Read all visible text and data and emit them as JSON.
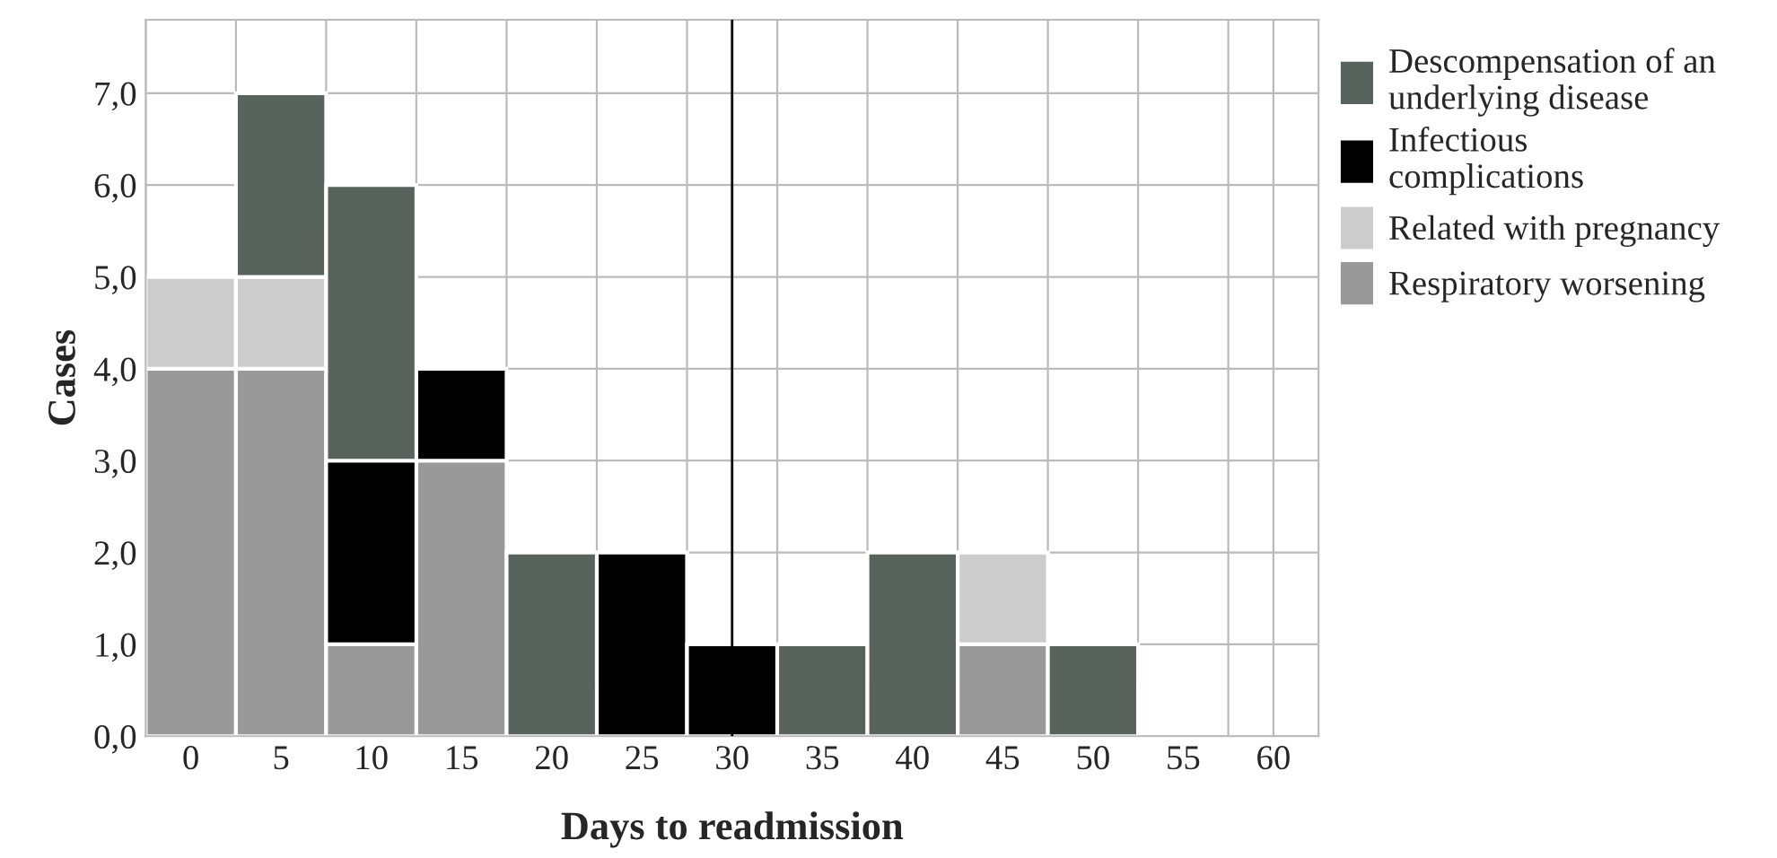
{
  "chart_data": {
    "type": "bar",
    "stacked": true,
    "xlabel": "Days to readmission",
    "ylabel": "Cases",
    "categories": [
      "0",
      "5",
      "10",
      "15",
      "20",
      "25",
      "30",
      "35",
      "40",
      "45",
      "50",
      "55",
      "60"
    ],
    "series": [
      {
        "name": "Respiratory worsening",
        "color": "#999999",
        "values": [
          4,
          4,
          1,
          3,
          0,
          0,
          0,
          0,
          0,
          1,
          0,
          0,
          0
        ]
      },
      {
        "name": "Related with pregnancy",
        "color": "#cccccc",
        "values": [
          1,
          1,
          0,
          0,
          0,
          0,
          0,
          0,
          0,
          1,
          0,
          0,
          0
        ]
      },
      {
        "name": "Infectious complications",
        "color": "#000000",
        "values": [
          0,
          0,
          2,
          1,
          0,
          2,
          1,
          0,
          0,
          0,
          0,
          0,
          0
        ]
      },
      {
        "name": "Descompensation of an underlying disease",
        "color": "#57635c",
        "values": [
          0,
          2,
          3,
          0,
          2,
          0,
          0,
          1,
          2,
          0,
          1,
          0,
          0
        ]
      }
    ],
    "ylim": [
      0,
      7.8
    ],
    "yticks": [
      {
        "value": 0,
        "label": "0,0"
      },
      {
        "value": 1,
        "label": "1,0"
      },
      {
        "value": 2,
        "label": "2,0"
      },
      {
        "value": 3,
        "label": "3,0"
      },
      {
        "value": 4,
        "label": "4,0"
      },
      {
        "value": 5,
        "label": "5,0"
      },
      {
        "value": 6,
        "label": "6,0"
      },
      {
        "value": 7,
        "label": "7,0"
      }
    ],
    "ref_lines": [
      {
        "axis": "x",
        "value": "30",
        "color": "#000000"
      }
    ],
    "grid": true,
    "legend": "right"
  }
}
